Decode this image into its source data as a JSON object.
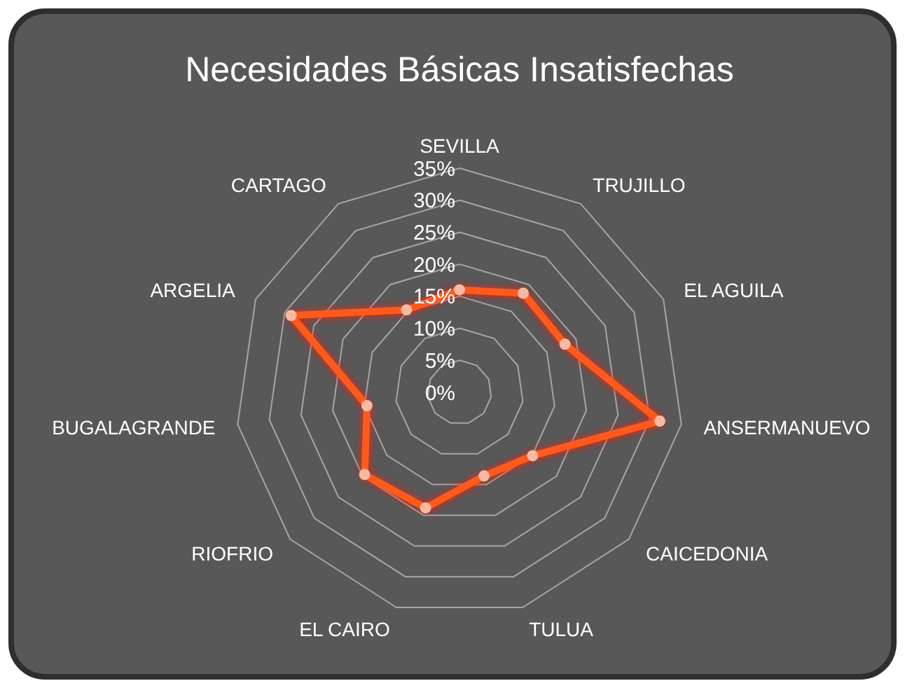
{
  "chart_data": {
    "type": "radar",
    "title": "Necesidades Básicas Insatisfechas",
    "categories": [
      "SEVILLA",
      "TRUJILLO",
      "EL AGUILA",
      "ANSERMANUEVO",
      "CAICEDONIA",
      "TULUA",
      "EL CAIRO",
      "RIOFRIO",
      "BUGALAGRANDE",
      "ARGELIA",
      "CARTAGO"
    ],
    "series": [
      {
        "color": "#ff5a1f",
        "values": [
          16,
          18.4,
          18.1,
          31.6,
          15.1,
          13.6,
          18.8,
          19.6,
          14.6,
          28.9,
          15.3
        ]
      }
    ],
    "ylim": [
      0,
      35
    ],
    "yticks": [
      {
        "value": 0,
        "label": "0%"
      },
      {
        "value": 5,
        "label": "5%"
      },
      {
        "value": 10,
        "label": "10%"
      },
      {
        "value": 15,
        "label": "15%"
      },
      {
        "value": 20,
        "label": "20%"
      },
      {
        "value": 25,
        "label": "25%"
      },
      {
        "value": 30,
        "label": "30%"
      },
      {
        "value": 35,
        "label": "35%"
      }
    ],
    "grid": true,
    "marker": "circle"
  }
}
